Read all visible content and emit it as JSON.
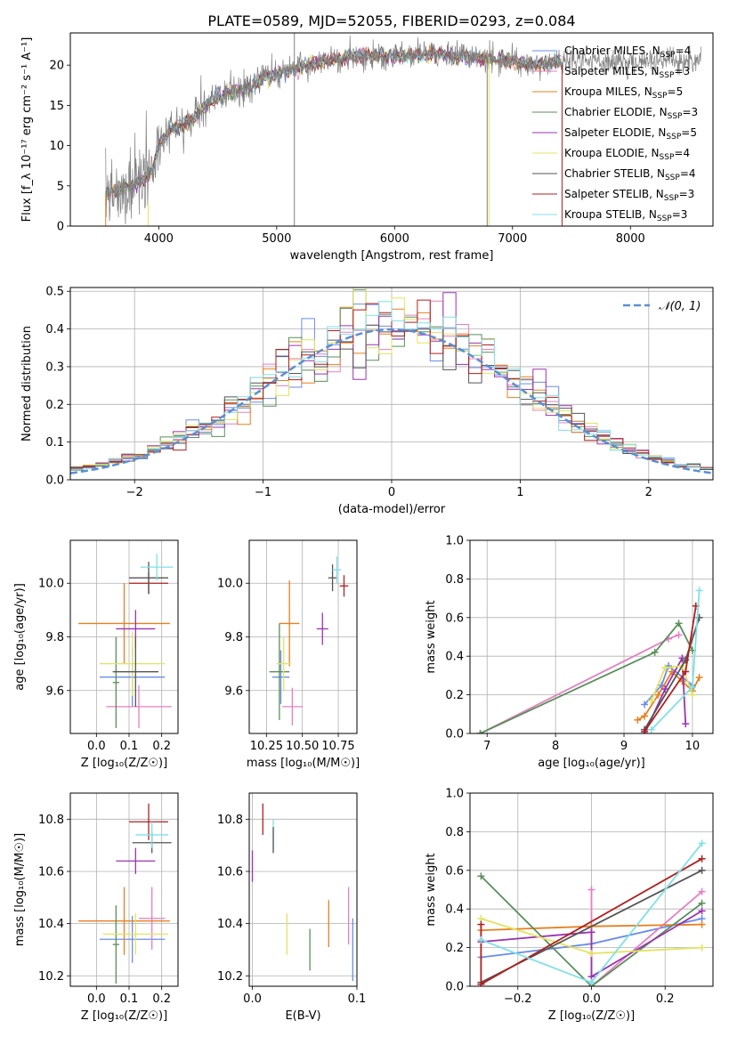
{
  "figure": {
    "title": "PLATE=0589, MJD=52055, FIBERID=0293, z=0.084"
  },
  "colors": {
    "Chabrier MILES": "#6a8ee6",
    "Salpeter MILES": "#e57fc0",
    "Kroupa MILES": "#e6801f",
    "Chabrier ELODIE": "#5a8f5a",
    "Salpeter ELODIE": "#9a33b0",
    "Kroupa ELODIE": "#e3e361",
    "Chabrier STELIB": "#555555",
    "Salpeter STELIB": "#b01f1f",
    "Kroupa STELIB": "#7fe0e6",
    "spectrum": "#808080",
    "normal": "#5a8fd6"
  },
  "chart_data": [
    {
      "id": "spectrum",
      "type": "line",
      "ylabel": "Flux [f_λ 10⁻¹⁷ erg cm⁻² s⁻¹ A⁻¹]",
      "xlabel": "wavelength [Angstrom, rest frame]",
      "xlim": [
        3250,
        8700
      ],
      "ylim": [
        0,
        24
      ],
      "xticks": [
        4000,
        5000,
        6000,
        7000,
        8000
      ],
      "yticks": [
        0,
        5,
        10,
        15,
        20
      ],
      "grid": false,
      "legend_position": "upper-right",
      "legend": [
        {
          "name": "Chabrier MILES, N_SSP=4",
          "base": "Chabrier MILES",
          "sub": "SSP",
          "tail": "=4"
        },
        {
          "name": "Salpeter MILES, N_SSP=3",
          "base": "Salpeter MILES",
          "sub": "SSP",
          "tail": "=3"
        },
        {
          "name": "Kroupa MILES, N_SSP=5",
          "base": "Kroupa MILES",
          "sub": "SSP",
          "tail": "=5"
        },
        {
          "name": "Chabrier ELODIE, N_SSP=3",
          "base": "Chabrier ELODIE",
          "sub": "SSP",
          "tail": "=3"
        },
        {
          "name": "Salpeter ELODIE, N_SSP=5",
          "base": "Salpeter ELODIE",
          "sub": "SSP",
          "tail": "=5"
        },
        {
          "name": "Kroupa ELODIE, N_SSP=4",
          "base": "Kroupa ELODIE",
          "sub": "SSP",
          "tail": "=4"
        },
        {
          "name": "Chabrier STELIB, N_SSP=4",
          "base": "Chabrier STELIB",
          "sub": "SSP",
          "tail": "=4"
        },
        {
          "name": "Salpeter STELIB, N_SSP=3",
          "base": "Salpeter STELIB",
          "sub": "SSP",
          "tail": "=3"
        },
        {
          "name": "Kroupa STELIB, N_SSP=3",
          "base": "Kroupa STELIB",
          "sub": "SSP",
          "tail": "=3"
        }
      ],
      "continuum": {
        "x": [
          3550,
          3650,
          3750,
          3850,
          3950,
          4000,
          4100,
          4200,
          4300,
          4400,
          4500,
          4600,
          4700,
          4800,
          4900,
          5000,
          5200,
          5400,
          5600,
          5800,
          6000,
          6200,
          6400,
          6600,
          6800,
          7000,
          7200,
          7400
        ],
        "y": [
          4.0,
          4.5,
          5.0,
          5.5,
          7.0,
          10.0,
          12.0,
          12.5,
          13.5,
          15.0,
          16.0,
          16.5,
          17.0,
          17.5,
          18.5,
          19.0,
          19.8,
          20.5,
          21.0,
          21.2,
          21.0,
          21.4,
          21.3,
          21.0,
          20.8,
          20.5,
          20.0,
          20.5
        ]
      },
      "spikes": [
        {
          "x": 5150,
          "ymax": 24,
          "ymin": 0
        },
        {
          "x": 6785,
          "ymax": 21,
          "ymin": 0
        }
      ]
    },
    {
      "id": "residual-histogram",
      "type": "histogram",
      "xlabel": "(data-model)/error",
      "ylabel": "Normed distribution",
      "xlim": [
        -2.5,
        2.5
      ],
      "ylim": [
        0,
        0.51
      ],
      "xticks": [
        -2,
        -1,
        0,
        1,
        2
      ],
      "xtick_labels": [
        "−2",
        "−1",
        "0",
        "1",
        "2"
      ],
      "yticks": [
        0.0,
        0.1,
        0.2,
        0.3,
        0.4,
        0.5
      ],
      "ytick_labels": [
        "0.0",
        "0.1",
        "0.2",
        "0.3",
        "0.4",
        "0.5"
      ],
      "grid": true,
      "legend_position": "upper-right",
      "normal_label": "𝒩(0, 1)",
      "bin_width": 0.1
    },
    {
      "id": "age-vs-Z",
      "type": "errorbar",
      "xlabel": "Z [log₁₀(Z/Z☉)]",
      "ylabel": "age  [log₁₀(age/yr)]",
      "xlim": [
        -0.08,
        0.25
      ],
      "ylim": [
        9.44,
        10.16
      ],
      "xticks": [
        0.0,
        0.1,
        0.2
      ],
      "xtick_labels": [
        "0.0",
        "0.1",
        "0.2"
      ],
      "yticks": [
        9.6,
        9.8,
        10.0
      ],
      "ytick_labels": [
        "9.6",
        "9.8",
        "10.0"
      ],
      "grid": true,
      "points": [
        {
          "series": "Chabrier MILES",
          "x": 0.11,
          "y": 9.65,
          "xerr": 0.1,
          "yerr": 0.11
        },
        {
          "series": "Salpeter MILES",
          "x": 0.13,
          "y": 9.54,
          "xerr": 0.1,
          "yerr": 0.08
        },
        {
          "series": "Kroupa MILES",
          "x": 0.085,
          "y": 9.85,
          "xerr": 0.14,
          "yerr": 0.15
        },
        {
          "series": "Chabrier ELODIE",
          "x": 0.06,
          "y": 9.63,
          "xerr": 0.01,
          "yerr": 0.17
        },
        {
          "series": "Salpeter ELODIE",
          "x": 0.12,
          "y": 9.83,
          "xerr": 0.06,
          "yerr": 0.07
        },
        {
          "series": "Kroupa ELODIE",
          "x": 0.11,
          "y": 9.7,
          "xerr": 0.1,
          "yerr": 0.12
        },
        {
          "series": "Chabrier STELIB",
          "x": 0.12,
          "y": 9.67,
          "xerr": 0.07,
          "yerr": 0.13
        },
        {
          "series": "Salpeter STELIB",
          "x": 0.16,
          "y": 10.0,
          "xerr": 0.06,
          "yerr": 0.04
        },
        {
          "series": "Chabrier STELIB",
          "x": 0.16,
          "y": 10.02,
          "xerr": 0.06,
          "yerr": 0.06
        },
        {
          "series": "Kroupa STELIB",
          "x": 0.185,
          "y": 10.06,
          "xerr": 0.05,
          "yerr": 0.05
        }
      ]
    },
    {
      "id": "age-vs-mass",
      "type": "errorbar",
      "xlabel": "mass [log₁₀(M/M☉)]",
      "ylabel": "",
      "xlim": [
        10.13,
        10.88
      ],
      "ylim": [
        9.44,
        10.16
      ],
      "xticks": [
        10.25,
        10.5,
        10.75
      ],
      "xtick_labels": [
        "10.25",
        "10.50",
        "10.75"
      ],
      "yticks": [
        9.6,
        9.8,
        10.0
      ],
      "ytick_labels": [
        "9.6",
        "9.8",
        "10.0"
      ],
      "grid": true,
      "points": [
        {
          "series": "Chabrier MILES",
          "x": 10.35,
          "y": 9.65,
          "xerr": 0.06,
          "yerr": 0.1
        },
        {
          "series": "Salpeter MILES",
          "x": 10.43,
          "y": 9.54,
          "xerr": 0.07,
          "yerr": 0.07
        },
        {
          "series": "Kroupa MILES",
          "x": 10.41,
          "y": 9.85,
          "xerr": 0.07,
          "yerr": 0.16
        },
        {
          "series": "Chabrier ELODIE",
          "x": 10.34,
          "y": 9.67,
          "xerr": 0.07,
          "yerr": 0.18
        },
        {
          "series": "Salpeter ELODIE",
          "x": 10.64,
          "y": 9.83,
          "xerr": 0.04,
          "yerr": 0.06
        },
        {
          "series": "Kroupa ELODIE",
          "x": 10.37,
          "y": 9.7,
          "xerr": 0.05,
          "yerr": 0.1
        },
        {
          "series": "Chabrier STELIB",
          "x": 10.71,
          "y": 10.02,
          "xerr": 0.03,
          "yerr": 0.05
        },
        {
          "series": "Salpeter STELIB",
          "x": 10.79,
          "y": 9.99,
          "xerr": 0.03,
          "yerr": 0.04
        },
        {
          "series": "Kroupa STELIB",
          "x": 10.74,
          "y": 10.05,
          "xerr": 0.03,
          "yerr": 0.05
        }
      ]
    },
    {
      "id": "weight-vs-age",
      "type": "line",
      "xlabel": "age  [log₁₀(age/yr)]",
      "ylabel": "mass weight",
      "xlim": [
        6.75,
        10.3
      ],
      "ylim": [
        0,
        1.0
      ],
      "xticks": [
        7,
        8,
        9,
        10
      ],
      "xtick_labels": [
        "7",
        "8",
        "9",
        "10"
      ],
      "yticks": [
        0.0,
        0.2,
        0.4,
        0.6,
        0.8,
        1.0
      ],
      "ytick_labels": [
        "0.0",
        "0.2",
        "0.4",
        "0.6",
        "0.8",
        "1.0"
      ],
      "grid": true,
      "series": [
        {
          "name": "Chabrier MILES",
          "x": [
            9.3,
            9.55,
            9.65,
            10.0
          ],
          "y": [
            0.15,
            0.25,
            0.35,
            0.25
          ]
        },
        {
          "name": "Salpeter MILES",
          "x": [
            6.9,
            9.65,
            9.8
          ],
          "y": [
            0.0,
            0.49,
            0.51
          ]
        },
        {
          "name": "Kroupa MILES",
          "x": [
            9.2,
            9.3,
            9.5,
            9.7,
            9.85,
            10.0,
            10.1
          ],
          "y": [
            0.07,
            0.09,
            0.2,
            0.32,
            0.27,
            0.22,
            0.29
          ]
        },
        {
          "name": "Chabrier ELODIE",
          "x": [
            6.9,
            9.45,
            9.8,
            10.0
          ],
          "y": [
            0.0,
            0.42,
            0.57,
            0.43
          ]
        },
        {
          "name": "Salpeter ELODIE",
          "x": [
            9.3,
            9.6,
            9.85,
            9.9
          ],
          "y": [
            0.0,
            0.23,
            0.39,
            0.05
          ]
        },
        {
          "name": "Kroupa ELODIE",
          "x": [
            9.4,
            9.6,
            9.85,
            10.0
          ],
          "y": [
            0.17,
            0.34,
            0.35,
            0.2
          ]
        },
        {
          "name": "Chabrier STELIB",
          "x": [
            9.3,
            9.9,
            10.1
          ],
          "y": [
            0.02,
            0.38,
            0.6
          ]
        },
        {
          "name": "Salpeter STELIB",
          "x": [
            9.3,
            9.9,
            10.05
          ],
          "y": [
            0.01,
            0.32,
            0.66
          ]
        },
        {
          "name": "Kroupa STELIB",
          "x": [
            9.4,
            10.0,
            10.1
          ],
          "y": [
            0.02,
            0.24,
            0.74
          ]
        }
      ]
    },
    {
      "id": "mass-vs-Z",
      "type": "errorbar",
      "xlabel": "Z [log₁₀(Z/Z☉)]",
      "ylabel": "mass [log₁₀(M/M☉)]",
      "xlim": [
        -0.08,
        0.25
      ],
      "ylim": [
        10.16,
        10.9
      ],
      "xticks": [
        0.0,
        0.1,
        0.2
      ],
      "xtick_labels": [
        "0.0",
        "0.1",
        "0.2"
      ],
      "yticks": [
        10.2,
        10.4,
        10.6,
        10.8
      ],
      "ytick_labels": [
        "10.2",
        "10.4",
        "10.6",
        "10.8"
      ],
      "grid": true,
      "points": [
        {
          "series": "Chabrier MILES",
          "x": 0.11,
          "y": 10.34,
          "xerr": 0.1,
          "yerr": 0.09
        },
        {
          "series": "Salpeter MILES",
          "x": 0.17,
          "y": 10.42,
          "xerr": 0.04,
          "yerr": 0.12
        },
        {
          "series": "Kroupa MILES",
          "x": 0.085,
          "y": 10.41,
          "xerr": 0.14,
          "yerr": 0.13
        },
        {
          "series": "Chabrier ELODIE",
          "x": 0.06,
          "y": 10.32,
          "xerr": 0.01,
          "yerr": 0.15
        },
        {
          "series": "Salpeter ELODIE",
          "x": 0.12,
          "y": 10.64,
          "xerr": 0.06,
          "yerr": 0.05
        },
        {
          "series": "Kroupa ELODIE",
          "x": 0.12,
          "y": 10.36,
          "xerr": 0.1,
          "yerr": 0.08
        },
        {
          "series": "Chabrier STELIB",
          "x": 0.17,
          "y": 10.71,
          "xerr": 0.06,
          "yerr": 0.04
        },
        {
          "series": "Salpeter STELIB",
          "x": 0.16,
          "y": 10.79,
          "xerr": 0.06,
          "yerr": 0.07
        },
        {
          "series": "Kroupa STELIB",
          "x": 0.17,
          "y": 10.74,
          "xerr": 0.05,
          "yerr": 0.05
        }
      ]
    },
    {
      "id": "mass-vs-ebv",
      "type": "errorbar",
      "xlabel": "E(B-V)",
      "ylabel": "",
      "xlim": [
        -0.003,
        0.1
      ],
      "ylim": [
        10.16,
        10.9
      ],
      "xticks": [
        0.0,
        0.1
      ],
      "xtick_labels": [
        "0.0",
        "0.1"
      ],
      "yticks": [
        10.2,
        10.4,
        10.6,
        10.8
      ],
      "ytick_labels": [
        "10.2",
        "10.4",
        "10.6",
        "10.8"
      ],
      "grid": true,
      "points": [
        {
          "series": "Salpeter ELODIE",
          "x": 0.0,
          "y": 10.62,
          "yerr": 0.06
        },
        {
          "series": "Salpeter STELIB",
          "x": 0.01,
          "y": 10.8,
          "yerr": 0.06
        },
        {
          "series": "Kroupa STELIB",
          "x": 0.02,
          "y": 10.74,
          "yerr": 0.06
        },
        {
          "series": "Chabrier STELIB",
          "x": 0.02,
          "y": 10.72,
          "yerr": 0.05
        },
        {
          "series": "Kroupa ELODIE",
          "x": 0.033,
          "y": 10.36,
          "yerr": 0.08
        },
        {
          "series": "Chabrier ELODIE",
          "x": 0.055,
          "y": 10.3,
          "yerr": 0.08
        },
        {
          "series": "Kroupa MILES",
          "x": 0.073,
          "y": 10.4,
          "yerr": 0.09
        },
        {
          "series": "Salpeter MILES",
          "x": 0.092,
          "y": 10.43,
          "yerr": 0.11
        },
        {
          "series": "Chabrier MILES",
          "x": 0.096,
          "y": 10.3,
          "yerr": 0.12
        }
      ]
    },
    {
      "id": "weight-vs-Z",
      "type": "line",
      "xlabel": "Z [log₁₀(Z/Z☉)]",
      "ylabel": "mass weight",
      "xlim": [
        -0.33,
        0.33
      ],
      "ylim": [
        0,
        1.0
      ],
      "xticks": [
        -0.2,
        0.0,
        0.2
      ],
      "xtick_labels": [
        "−0.2",
        "0.0",
        "0.2"
      ],
      "yticks": [
        0.0,
        0.2,
        0.4,
        0.6,
        0.8,
        1.0
      ],
      "ytick_labels": [
        "0.0",
        "0.2",
        "0.4",
        "0.6",
        "0.8",
        "1.0"
      ],
      "grid": true,
      "series": [
        {
          "name": "Chabrier MILES",
          "x": [
            -0.3,
            0.0,
            0.3
          ],
          "y": [
            0.15,
            0.22,
            0.35
          ]
        },
        {
          "name": "Salpeter MILES",
          "x": [
            0.0,
            0.0,
            0.3
          ],
          "y": [
            0.5,
            0.0,
            0.49
          ]
        },
        {
          "name": "Kroupa MILES",
          "x": [
            -0.3,
            0.0,
            0.3
          ],
          "y": [
            0.29,
            0.31,
            0.32
          ]
        },
        {
          "name": "Chabrier ELODIE",
          "x": [
            -0.3,
            0.0,
            0.3
          ],
          "y": [
            0.57,
            0.0,
            0.43
          ]
        },
        {
          "name": "Salpeter ELODIE",
          "x": [
            -0.3,
            0.0,
            0.0,
            0.3
          ],
          "y": [
            0.23,
            0.28,
            0.05,
            0.39
          ]
        },
        {
          "name": "Kroupa ELODIE",
          "x": [
            -0.3,
            0.0,
            0.3
          ],
          "y": [
            0.35,
            0.17,
            0.2
          ]
        },
        {
          "name": "Chabrier STELIB",
          "x": [
            -0.3,
            0.3
          ],
          "y": [
            0.02,
            0.6
          ]
        },
        {
          "name": "Salpeter STELIB",
          "x": [
            -0.3,
            -0.3,
            0.3
          ],
          "y": [
            0.32,
            0.01,
            0.66
          ]
        },
        {
          "name": "Kroupa STELIB",
          "x": [
            -0.3,
            0.0,
            0.3
          ],
          "y": [
            0.24,
            0.02,
            0.74
          ]
        }
      ]
    }
  ]
}
